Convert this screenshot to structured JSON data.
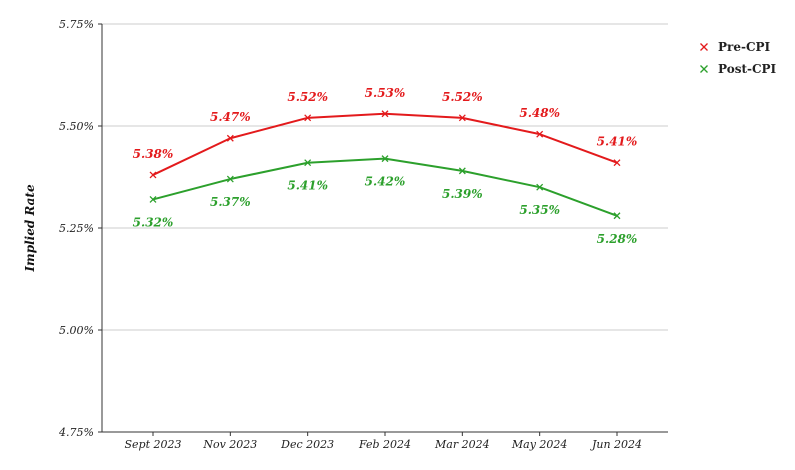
{
  "chart_data": {
    "type": "line",
    "categories": [
      "Sept 2023",
      "Nov 2023",
      "Dec 2023",
      "Feb 2024",
      "Mar 2024",
      "May 2024",
      "Jun 2024"
    ],
    "series": [
      {
        "name": "Pre-CPI",
        "color": "#e31a1c",
        "values": [
          5.38,
          5.47,
          5.52,
          5.53,
          5.52,
          5.48,
          5.41
        ],
        "labels": [
          "5.38%",
          "5.47%",
          "5.52%",
          "5.53%",
          "5.52%",
          "5.48%",
          "5.41%"
        ]
      },
      {
        "name": "Post-CPI",
        "color": "#2ca02c",
        "values": [
          5.32,
          5.37,
          5.41,
          5.42,
          5.39,
          5.35,
          5.28
        ],
        "labels": [
          "5.32%",
          "5.37%",
          "5.41%",
          "5.42%",
          "5.39%",
          "5.35%",
          "5.28%"
        ]
      }
    ],
    "ylabel": "Implied Rate",
    "ylim": [
      4.75,
      5.75
    ],
    "yticks": [
      4.75,
      5.0,
      5.25,
      5.5,
      5.75
    ],
    "ytick_labels": [
      "4.75%",
      "5.00%",
      "5.25%",
      "5.50%",
      "5.75%"
    ],
    "grid": true,
    "legend": "top-right",
    "marker": "x"
  }
}
